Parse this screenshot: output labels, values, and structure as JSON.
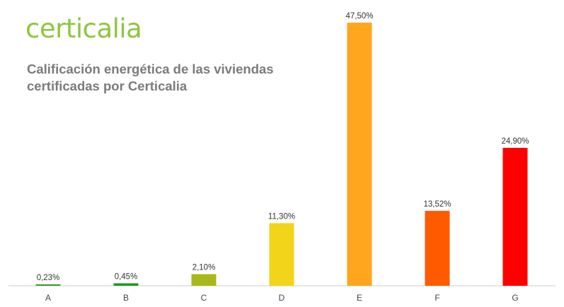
{
  "brand": {
    "logo_text": "certicalia",
    "logo_color": "#8dc63f"
  },
  "chart_data": {
    "type": "bar",
    "title": "Calificación energética de las viviendas certificadas por Certicalia",
    "xlabel": "",
    "ylabel": "",
    "ylim": [
      0,
      47.5
    ],
    "grid": false,
    "legend": "none",
    "categories": [
      "A",
      "B",
      "C",
      "D",
      "E",
      "F",
      "G"
    ],
    "values": [
      0.23,
      0.45,
      2.1,
      11.3,
      47.5,
      13.52,
      24.9
    ],
    "value_labels": [
      "0,23%",
      "0,45%",
      "2,10%",
      "11,30%",
      "47,50%",
      "13,52%",
      "24,90%"
    ],
    "colors": [
      "#3a9a2a",
      "#1e9a1e",
      "#a8b81a",
      "#f2d41a",
      "#ffa51e",
      "#ff5a00",
      "#ff0000"
    ],
    "axis_color": "#cccccc"
  }
}
